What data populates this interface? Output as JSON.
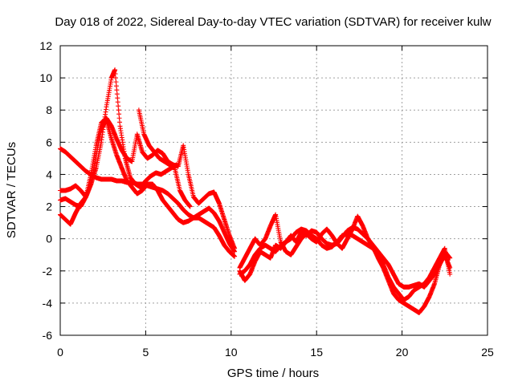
{
  "chart_data": {
    "type": "scatter",
    "title": "Day 018 of 2022, Sidereal Day-to-day VTEC variation (SDTVAR) for receiver kulw",
    "xlabel": "GPS time / hours",
    "ylabel": "SDTVAR / TECUs",
    "xlim": [
      0,
      25
    ],
    "ylim": [
      -6,
      12
    ],
    "xticks": [
      0,
      5,
      10,
      15,
      20,
      25
    ],
    "yticks": [
      -6,
      -4,
      -2,
      0,
      2,
      4,
      6,
      8,
      10,
      12
    ],
    "grid": true,
    "marker": "plus",
    "color": "#ff0000",
    "series": [
      {
        "name": "track-1",
        "x": [
          0.0,
          0.3,
          0.6,
          0.9,
          1.2,
          1.5,
          1.8,
          2.1,
          2.4,
          2.7,
          3.0,
          3.3,
          3.6,
          3.9,
          4.2,
          4.5,
          4.8,
          5.1,
          5.4,
          5.7,
          6.0,
          6.3,
          6.6,
          6.9,
          7.2,
          7.5,
          7.8,
          8.1,
          8.4,
          8.7,
          9.0,
          9.3,
          9.6,
          9.9,
          10.2
        ],
        "y": [
          1.5,
          1.2,
          0.9,
          1.6,
          2.2,
          2.6,
          3.4,
          5.2,
          6.8,
          7.4,
          6.2,
          5.2,
          4.4,
          3.6,
          3.2,
          2.8,
          3.0,
          3.4,
          3.4,
          3.0,
          2.4,
          2.0,
          1.6,
          1.2,
          1.0,
          1.1,
          1.3,
          1.3,
          1.1,
          0.9,
          0.7,
          0.2,
          -0.4,
          -0.8,
          -1.1
        ]
      },
      {
        "name": "track-2",
        "x": [
          0.0,
          0.3,
          0.6,
          0.9,
          1.2,
          1.5,
          1.8,
          2.1,
          2.4,
          2.7,
          3.0,
          3.3,
          3.6,
          3.9,
          4.2,
          4.5,
          4.8,
          5.1,
          5.4,
          5.7,
          6.0,
          6.3,
          6.6,
          6.9,
          7.2,
          7.5,
          7.8,
          8.1,
          8.4,
          8.7,
          9.0,
          9.3,
          9.6,
          9.9,
          10.2
        ],
        "y": [
          5.6,
          5.4,
          5.1,
          4.8,
          4.5,
          4.2,
          4.0,
          3.8,
          3.7,
          3.7,
          3.7,
          3.6,
          3.6,
          3.5,
          3.5,
          3.4,
          3.4,
          3.3,
          3.2,
          3.1,
          3.0,
          2.8,
          2.5,
          2.2,
          1.8,
          1.5,
          1.3,
          1.5,
          1.7,
          1.9,
          1.6,
          1.1,
          0.4,
          -0.3,
          -0.8
        ]
      },
      {
        "name": "track-3",
        "x": [
          0.0,
          0.3,
          0.6,
          0.9,
          1.2,
          1.5,
          1.8,
          2.1,
          2.4,
          2.7,
          3.0,
          3.2,
          3.5,
          3.8,
          4.1,
          4.4,
          4.7,
          5.0,
          5.3,
          5.6,
          5.9,
          6.2,
          6.5,
          6.8
        ],
        "y": [
          3.0,
          3.0,
          3.1,
          3.3,
          3.0,
          2.6,
          3.4,
          4.4,
          6.0,
          8.2,
          10.0,
          10.5,
          7.0,
          5.0,
          3.8,
          3.4,
          3.2,
          3.6,
          3.9,
          4.1,
          4.0,
          4.2,
          4.4,
          4.6
        ]
      },
      {
        "name": "track-4",
        "x": [
          0.0,
          0.3,
          0.6,
          0.9,
          1.2,
          1.5,
          1.8,
          2.1,
          2.4,
          2.7,
          3.0,
          3.3,
          3.6,
          3.9,
          4.2,
          4.5,
          4.8,
          5.1,
          5.4,
          5.7,
          6.0,
          6.3,
          6.6,
          6.9,
          7.2,
          7.5,
          7.8,
          8.1,
          8.4,
          8.7,
          9.0,
          9.3,
          9.6,
          9.9,
          10.2
        ],
        "y": [
          2.4,
          2.5,
          2.3,
          2.1,
          2.0,
          2.6,
          4.0,
          5.8,
          7.2,
          7.5,
          7.0,
          6.2,
          5.5,
          5.0,
          4.8,
          6.5,
          5.4,
          5.0,
          5.2,
          5.5,
          5.3,
          4.8,
          4.6,
          4.5,
          5.8,
          4.0,
          2.6,
          2.2,
          2.5,
          2.8,
          2.9,
          2.2,
          1.2,
          0.2,
          -0.6
        ]
      },
      {
        "name": "track-5",
        "x": [
          4.6,
          4.9,
          5.2,
          5.5,
          5.8,
          6.1,
          6.4,
          6.7,
          7.0,
          7.3,
          7.6
        ],
        "y": [
          8.0,
          6.5,
          5.8,
          5.4,
          5.0,
          4.8,
          4.6,
          4.4,
          3.0,
          2.4,
          2.0
        ]
      },
      {
        "name": "track-6",
        "x": [
          10.5,
          10.8,
          11.1,
          11.4,
          11.7,
          12.0,
          12.3,
          12.6,
          12.9,
          13.2,
          13.5,
          13.8,
          14.1,
          14.4,
          14.7,
          15.0,
          15.3,
          15.6,
          15.9,
          16.2,
          16.5,
          16.8,
          17.1,
          17.4,
          17.7,
          18.0,
          18.3,
          18.6,
          18.9,
          19.2,
          19.5,
          19.8,
          20.1,
          20.4,
          20.7,
          21.0,
          21.3,
          21.6,
          21.9,
          22.2,
          22.5,
          22.8
        ],
        "y": [
          -2.0,
          -2.6,
          -2.2,
          -1.4,
          -0.8,
          -1.0,
          -1.2,
          -0.4,
          -0.6,
          -0.2,
          0.2,
          -0.2,
          0.4,
          0.2,
          0.5,
          0.4,
          0.0,
          -0.3,
          -0.4,
          -0.3,
          0.1,
          0.5,
          0.7,
          0.6,
          0.3,
          0.0,
          -0.5,
          -1.2,
          -1.8,
          -2.6,
          -3.4,
          -3.8,
          -4.0,
          -4.2,
          -4.4,
          -4.6,
          -4.2,
          -3.6,
          -2.8,
          -1.6,
          -0.8,
          -1.2
        ]
      },
      {
        "name": "track-7",
        "x": [
          10.5,
          10.8,
          11.1,
          11.4,
          11.7,
          12.0,
          12.3,
          12.6,
          12.9,
          13.2,
          13.5,
          13.8,
          14.1,
          14.4,
          14.7,
          15.0,
          15.3,
          15.6,
          15.9,
          16.2,
          16.5,
          16.8,
          17.1,
          17.4,
          17.7,
          18.0,
          18.3,
          18.6,
          18.9,
          19.2,
          19.5,
          19.8,
          20.1,
          20.4,
          20.7,
          21.0,
          21.3,
          21.6,
          21.9,
          22.2,
          22.5,
          22.8
        ],
        "y": [
          -1.8,
          -1.2,
          -0.6,
          0.0,
          -0.4,
          0.0,
          0.8,
          1.5,
          -0.2,
          -0.8,
          -1.0,
          -0.5,
          0.0,
          0.3,
          0.0,
          -0.2,
          0.3,
          0.6,
          0.2,
          -0.3,
          -0.6,
          0.0,
          0.6,
          1.4,
          0.8,
          0.0,
          -0.4,
          -0.8,
          -1.2,
          -1.6,
          -2.2,
          -2.8,
          -3.0,
          -3.0,
          -2.9,
          -2.8,
          -3.0,
          -2.6,
          -2.2,
          -1.6,
          -1.0,
          -1.8
        ]
      },
      {
        "name": "track-8",
        "x": [
          10.5,
          10.8,
          11.1,
          11.4,
          11.7,
          12.0,
          12.3,
          12.6,
          12.9,
          13.2,
          13.5,
          13.8,
          14.1,
          14.4,
          14.7,
          15.0,
          15.3,
          15.6,
          15.9,
          16.2,
          16.5,
          16.8,
          17.1,
          17.4,
          17.7,
          18.0,
          18.3,
          18.6,
          18.9,
          19.2,
          19.5,
          19.8,
          20.1,
          20.4,
          20.7,
          21.0,
          21.3,
          21.6,
          21.9,
          22.2,
          22.5,
          22.8
        ],
        "y": [
          -2.2,
          -2.0,
          -1.6,
          -1.0,
          -0.6,
          -0.4,
          -0.6,
          -0.8,
          -0.4,
          -0.2,
          0.0,
          0.4,
          0.6,
          0.5,
          0.2,
          0.0,
          -0.4,
          -0.6,
          -0.5,
          -0.2,
          0.2,
          0.3,
          0.2,
          0.0,
          -0.2,
          -0.4,
          -0.6,
          -1.0,
          -1.6,
          -2.4,
          -3.0,
          -3.4,
          -3.8,
          -3.6,
          -3.2,
          -3.0,
          -2.8,
          -2.4,
          -1.8,
          -1.2,
          -0.6,
          -2.2
        ]
      }
    ]
  }
}
